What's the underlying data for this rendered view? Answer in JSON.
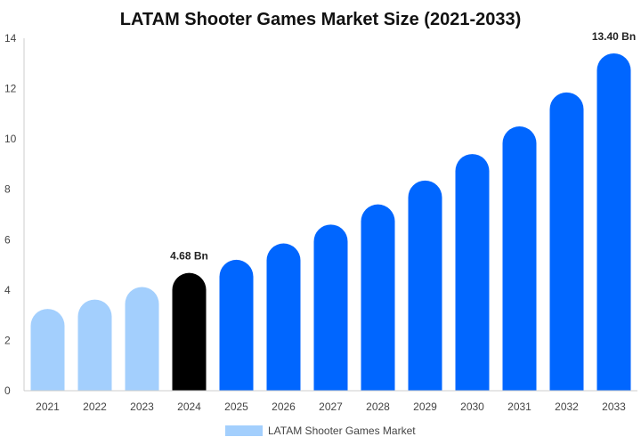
{
  "chart_data": {
    "type": "bar",
    "title": "LATAM Shooter Games Market Size (2021-2033)",
    "xlabel": "",
    "ylabel": "",
    "categories": [
      "2021",
      "2022",
      "2023",
      "2024",
      "2025",
      "2026",
      "2027",
      "2028",
      "2029",
      "2030",
      "2031",
      "2032",
      "2033"
    ],
    "series": [
      {
        "name": "LATAM Shooter Games Market",
        "values": [
          3.25,
          3.62,
          4.12,
          4.68,
          5.2,
          5.85,
          6.6,
          7.4,
          8.35,
          9.4,
          10.5,
          11.85,
          13.4
        ]
      }
    ],
    "ylim": [
      0,
      14
    ],
    "yticks": [
      0,
      2,
      4,
      6,
      8,
      10,
      12,
      14
    ],
    "data_labels": [
      {
        "index": 3,
        "text": "4.68 Bn"
      },
      {
        "index": 12,
        "text": "13.40 Bn"
      }
    ],
    "colors": {
      "historical": "#a3cffd",
      "base_year": "#000000",
      "forecast": "#0066ff",
      "legend_swatch": "#a3cffd"
    },
    "base_year_index": 3,
    "grid": false,
    "legend_position": "bottom-center"
  }
}
